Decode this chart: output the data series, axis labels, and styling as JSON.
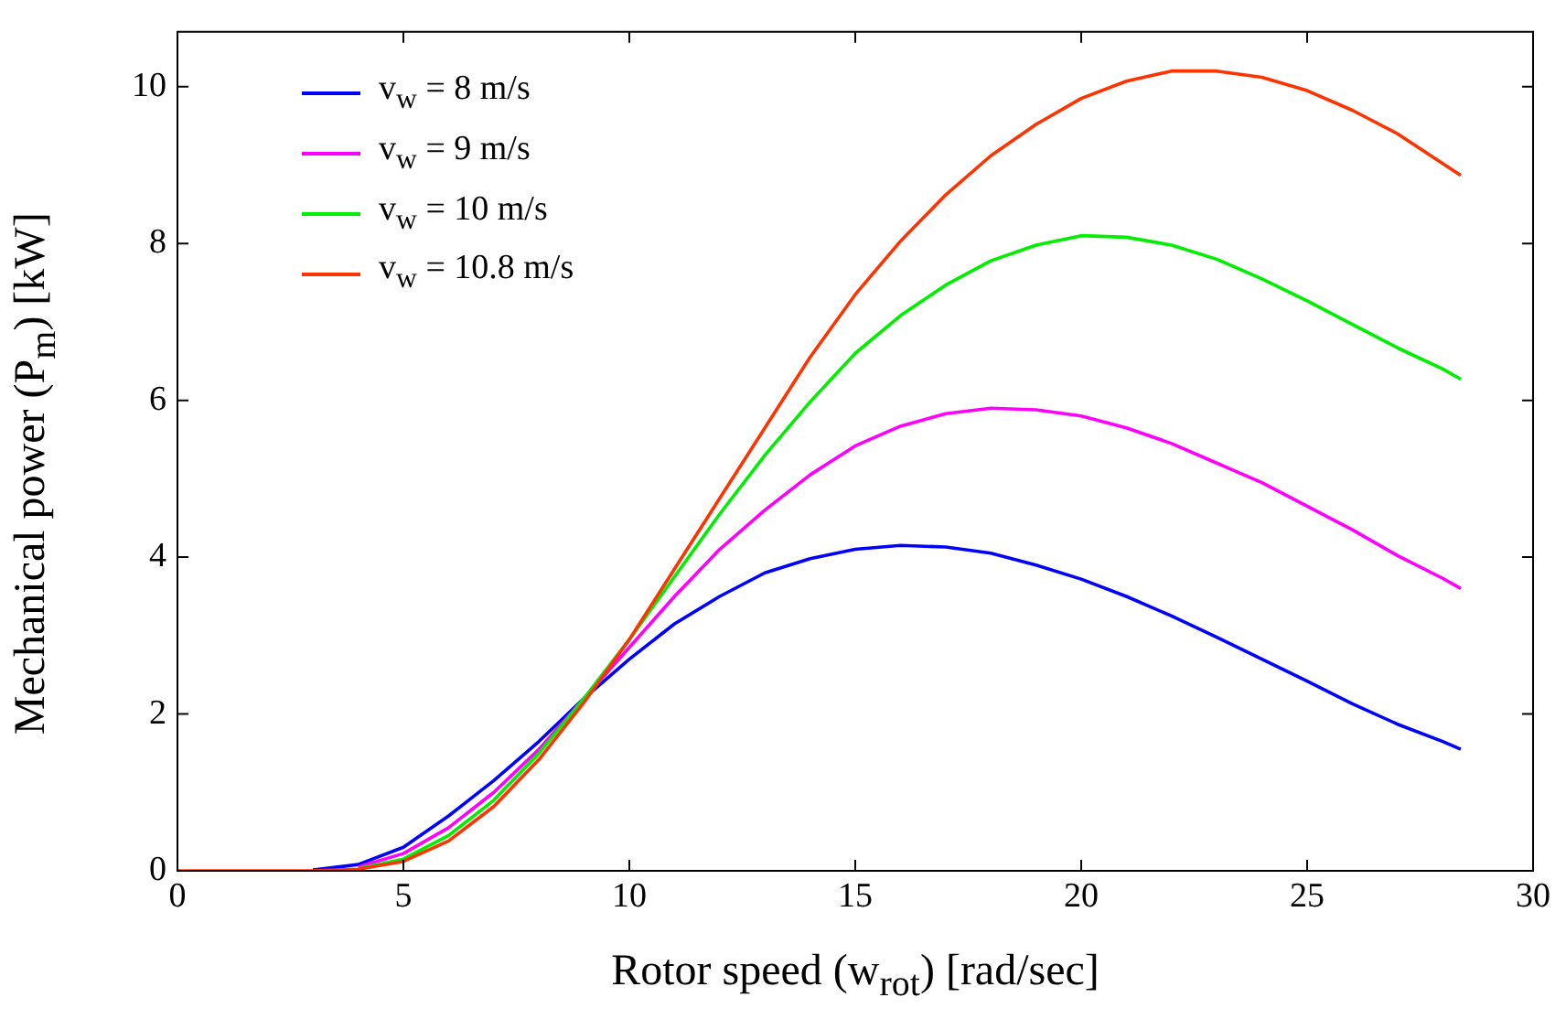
{
  "chart_data": {
    "type": "line",
    "xlabel": "Rotor speed (w$_{rot}$) [rad/sec]",
    "ylabel": "Mechanical power (P$_{m}$) [kW]",
    "x": [
      0,
      2,
      3,
      4,
      5,
      6,
      7,
      8,
      9,
      10,
      11,
      12,
      13,
      14,
      15,
      16,
      17,
      18,
      19,
      20,
      21,
      22,
      23,
      24,
      25,
      26,
      27,
      28,
      28.4
    ],
    "xlim": [
      0,
      30
    ],
    "xticks": [
      0,
      5,
      10,
      15,
      20,
      25,
      30
    ],
    "ylim": [
      0,
      10.7
    ],
    "yticks": [
      0,
      2,
      4,
      6,
      8,
      10
    ],
    "grid": false,
    "legend": "top left",
    "marker": "none",
    "line_style": "solid",
    "series": [
      {
        "name": "v$_{w}$ = 8 m/s",
        "color": "#0000ff",
        "values": [
          null,
          null,
          0.01,
          0.08,
          0.3,
          0.7,
          1.15,
          1.65,
          2.2,
          2.7,
          3.15,
          3.5,
          3.8,
          3.98,
          4.1,
          4.15,
          4.13,
          4.05,
          3.9,
          3.72,
          3.5,
          3.25,
          2.98,
          2.7,
          2.42,
          2.13,
          1.87,
          1.65,
          1.55
        ]
      },
      {
        "name": "v$_{w}$ = 9 m/s",
        "color": "#ff00ff",
        "values": [
          null,
          null,
          null,
          0.05,
          0.22,
          0.55,
          1.0,
          1.55,
          2.2,
          2.85,
          3.5,
          4.1,
          4.6,
          5.05,
          5.42,
          5.67,
          5.83,
          5.9,
          5.88,
          5.8,
          5.65,
          5.45,
          5.2,
          4.95,
          4.65,
          4.35,
          4.02,
          3.73,
          3.6
        ]
      },
      {
        "name": "v$_{w}$ = 10 m/s",
        "color": "#00ee00",
        "values": [
          null,
          null,
          null,
          0.03,
          0.15,
          0.45,
          0.9,
          1.5,
          2.2,
          2.95,
          3.75,
          4.55,
          5.3,
          5.98,
          6.6,
          7.08,
          7.47,
          7.78,
          7.98,
          8.1,
          8.08,
          7.98,
          7.8,
          7.55,
          7.27,
          6.97,
          6.67,
          6.4,
          6.27
        ]
      },
      {
        "name": "v$_{w}$ = 10.8 m/s",
        "color": "#ff3300",
        "values": [
          0,
          0,
          0,
          0.02,
          0.12,
          0.38,
          0.82,
          1.42,
          2.15,
          2.95,
          3.85,
          4.75,
          5.65,
          6.55,
          7.35,
          8.03,
          8.62,
          9.12,
          9.52,
          9.85,
          10.07,
          10.2,
          10.2,
          10.12,
          9.95,
          9.7,
          9.4,
          9.02,
          8.87
        ]
      }
    ]
  }
}
